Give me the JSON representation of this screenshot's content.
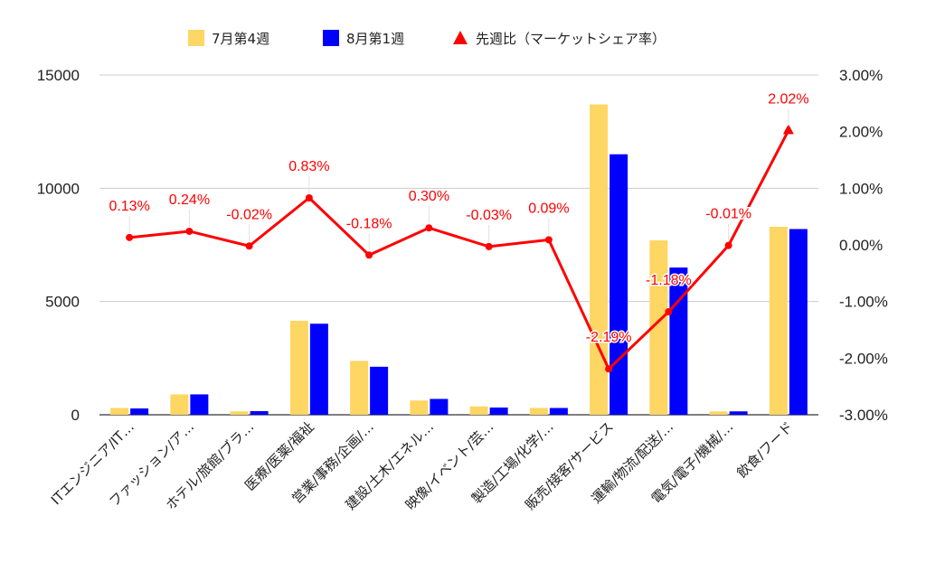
{
  "chart_data": {
    "type": "bar",
    "categories": [
      "ITエンジニア/IT…",
      "ファッション/ア…",
      "ホテル/旅館/ブラ…",
      "医療/医薬/福祉",
      "営業/事務/企画/…",
      "建設/土木/エネル…",
      "映像/イベント/芸…",
      "製造/工場/化学/…",
      "販売/接客/サービス",
      "運輸/物流/配送/…",
      "電気/電子/機械/…",
      "飲食/フード"
    ],
    "series": [
      {
        "name": "7月第4週",
        "color": "#fdd663",
        "values": [
          300,
          900,
          150,
          4150,
          2380,
          630,
          370,
          300,
          13700,
          7700,
          150,
          8300
        ]
      },
      {
        "name": "8月第1週",
        "color": "#0000ff",
        "values": [
          280,
          900,
          160,
          4020,
          2120,
          700,
          320,
          300,
          11500,
          6500,
          150,
          8200
        ]
      }
    ],
    "line_series": {
      "name": "先週比（マーケットシェア率）",
      "color": "#ff0000",
      "values": [
        0.13,
        0.24,
        -0.02,
        0.83,
        -0.18,
        0.3,
        -0.03,
        0.09,
        -2.19,
        -1.18,
        -0.01,
        2.02
      ],
      "labels": [
        "0.13%",
        "0.24%",
        "-0.02%",
        "0.83%",
        "-0.18%",
        "0.30%",
        "-0.03%",
        "0.09%",
        "-2.19%",
        "-1.18%",
        "-0.01%",
        "2.02%"
      ]
    },
    "left_axis": {
      "ylim": [
        0,
        15000
      ],
      "ticks": [
        "0",
        "5000",
        "10000",
        "15000"
      ]
    },
    "right_axis": {
      "ylim": [
        -3,
        3
      ],
      "ticks": [
        "-3.00%",
        "-2.00%",
        "-1.00%",
        "0.00%",
        "1.00%",
        "2.00%",
        "3.00%"
      ]
    },
    "legend_position": "top-center",
    "grid": true
  }
}
